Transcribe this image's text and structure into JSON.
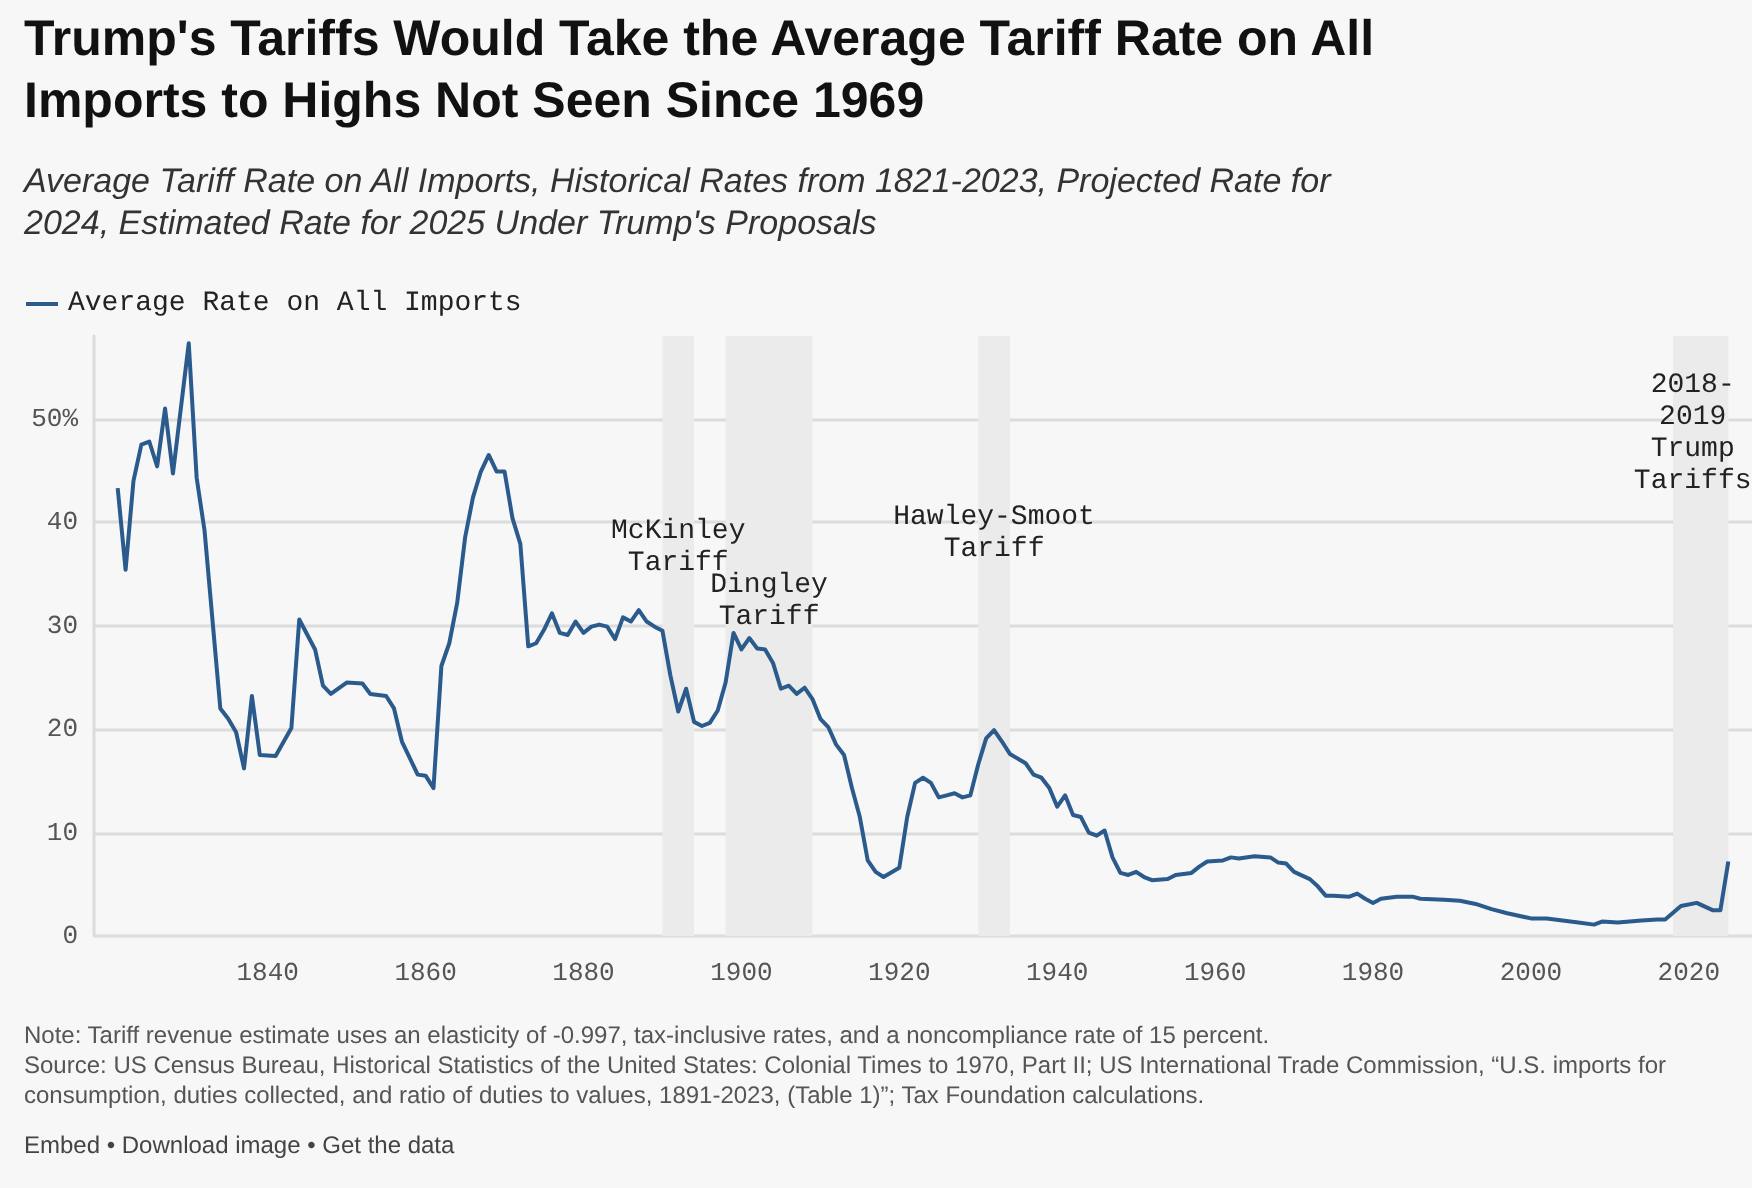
{
  "chart_data": {
    "type": "line",
    "title": "Trump's Tariffs Would Take the Average Tariff Rate on All Imports to Highs Not Seen Since 1969",
    "subtitle": "Average Tariff Rate on All Imports, Historical Rates from 1821-2023, Projected Rate for 2024, Estimated Rate for 2025 Under Trump's Proposals",
    "x": [
      1821,
      1822,
      1823,
      1824,
      1825,
      1826,
      1827,
      1828,
      1830,
      1831,
      1832,
      1834,
      1835,
      1836,
      1837,
      1838,
      1839,
      1841,
      1843,
      1844,
      1846,
      1847,
      1848,
      1850,
      1852,
      1853,
      1855,
      1856,
      1857,
      1859,
      1860,
      1861,
      1862,
      1863,
      1864,
      1865,
      1866,
      1867,
      1868,
      1869,
      1870,
      1871,
      1872,
      1873,
      1874,
      1875,
      1876,
      1877,
      1878,
      1879,
      1880,
      1881,
      1882,
      1883,
      1884,
      1885,
      1886,
      1887,
      1888,
      1889,
      1890,
      1891,
      1892,
      1893,
      1894,
      1895,
      1896,
      1897,
      1898,
      1899,
      1900,
      1901,
      1902,
      1903,
      1904,
      1905,
      1906,
      1907,
      1908,
      1909,
      1910,
      1911,
      1912,
      1913,
      1914,
      1915,
      1916,
      1917,
      1918,
      1920,
      1921,
      1922,
      1923,
      1924,
      1925,
      1926,
      1927,
      1928,
      1929,
      1930,
      1931,
      1932,
      1933,
      1934,
      1936,
      1937,
      1938,
      1939,
      1940,
      1941,
      1942,
      1943,
      1944,
      1945,
      1946,
      1947,
      1948,
      1949,
      1950,
      1951,
      1952,
      1954,
      1955,
      1957,
      1958,
      1959,
      1961,
      1962,
      1963,
      1965,
      1967,
      1968,
      1969,
      1970,
      1972,
      1973,
      1974,
      1975,
      1977,
      1978,
      1979,
      1980,
      1981,
      1983,
      1985,
      1986,
      1989,
      1991,
      1993,
      1995,
      1997,
      2000,
      2002,
      2004,
      2006,
      2008,
      2009,
      2011,
      2014,
      2016,
      2017,
      2019,
      2021,
      2023,
      2024,
      2025
    ],
    "series": [
      {
        "name": "Average Rate on All Imports",
        "color": "#2b5a8c",
        "values": [
          43.3,
          35.4,
          44,
          47.5,
          47.8,
          45.4,
          51,
          44.7,
          57.3,
          44.3,
          39.2,
          22,
          21,
          19.7,
          16.2,
          23.2,
          17.5,
          17.4,
          20.1,
          30.6,
          27.7,
          24.2,
          23.4,
          24.5,
          24.4,
          23.4,
          23.2,
          22,
          18.8,
          15.6,
          15.5,
          14.3,
          26.1,
          28.3,
          32.2,
          38.5,
          42.4,
          44.9,
          46.5,
          44.9,
          44.9,
          40.4,
          37.9,
          28,
          28.3,
          29.6,
          31.2,
          29.3,
          29.1,
          30.4,
          29.3,
          29.9,
          30.1,
          29.9,
          28.7,
          30.8,
          30.4,
          31.5,
          30.4,
          29.9,
          29.5,
          25.2,
          21.7,
          23.9,
          20.7,
          20.3,
          20.6,
          21.8,
          24.5,
          29.3,
          27.7,
          28.8,
          27.8,
          27.7,
          26.4,
          23.9,
          24.2,
          23.4,
          24,
          22.9,
          21,
          20.2,
          18.5,
          17.5,
          14.3,
          11.5,
          7.3,
          6.2,
          5.7,
          6.6,
          11.5,
          14.8,
          15.3,
          14.8,
          13.4,
          13.6,
          13.8,
          13.4,
          13.6,
          16.6,
          19.1,
          19.9,
          18.8,
          17.6,
          16.7,
          15.6,
          15.3,
          14.3,
          12.5,
          13.6,
          11.7,
          11.5,
          10,
          9.7,
          10.2,
          7.6,
          6.1,
          5.9,
          6.2,
          5.7,
          5.4,
          5.5,
          5.9,
          6.1,
          6.7,
          7.2,
          7.3,
          7.6,
          7.5,
          7.7,
          7.6,
          7.1,
          7,
          6.2,
          5.5,
          4.8,
          3.9,
          3.9,
          3.8,
          4.1,
          3.6,
          3.2,
          3.6,
          3.8,
          3.8,
          3.6,
          3.5,
          3.4,
          3.1,
          2.6,
          2.2,
          1.7,
          1.7,
          1.5,
          1.3,
          1.1,
          1.4,
          1.3,
          1.5,
          1.6,
          1.6,
          2.9,
          3.2,
          2.5,
          2.5,
          7.2
        ]
      }
    ],
    "xlim": [
      1818,
      2028
    ],
    "xticks": [
      1840,
      1860,
      1880,
      1900,
      1920,
      1940,
      1960,
      1980,
      2000,
      2020
    ],
    "ylim": [
      0,
      58
    ],
    "yticks": [
      0,
      10,
      20,
      30,
      40,
      {
        "value": 50,
        "label": "50%"
      }
    ],
    "grid": "y",
    "legend": "top left",
    "bands": [
      {
        "axis": "x",
        "from": 1890,
        "to": 1894,
        "label": "McKinley\nTariff",
        "color": "#ebebeb"
      },
      {
        "axis": "x",
        "from": 1898,
        "to": 1909,
        "label": "Dingley\nTariff",
        "color": "#ebebeb"
      },
      {
        "axis": "x",
        "from": 1930,
        "to": 1934,
        "label": "Hawley-Smoot\nTariff",
        "color": "#ebebeb"
      },
      {
        "axis": "x",
        "from": 2018,
        "to": 2025,
        "label": "2018-\n2019\nTrump\nTariffs",
        "color": "#ebebeb"
      }
    ],
    "annotations": [
      "Note: Tariff revenue estimate uses an elasticity of -0.997, tax-inclusive rates, and a noncompliance rate of 15 percent.",
      "Source: US Census Bureau, Historical Statistics of the United States: Colonial Times to 1970, Part II; US International Trade Commission, “U.S. imports for consumption, duties collected, and ratio of duties to values, 1891-2023, (Table 1)”; Tax Foundation calculations.",
      "Embed • Download image • Get the data"
    ]
  }
}
